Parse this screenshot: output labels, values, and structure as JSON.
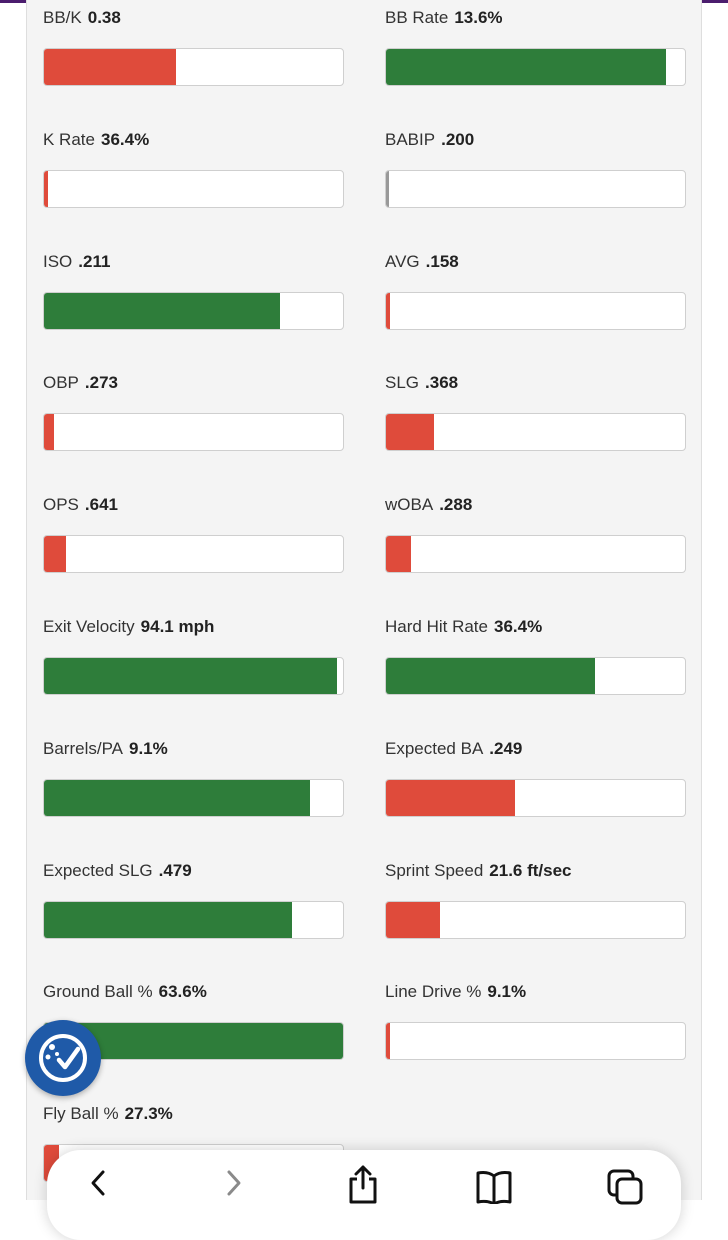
{
  "colors": {
    "good": "#2e7d3a",
    "bad": "#df4b3b",
    "neutral": "#999999"
  },
  "stats": [
    {
      "label": "BB/K",
      "value": "0.38",
      "pct": 0.44,
      "rating": "bad"
    },
    {
      "label": "BB Rate",
      "value": "13.6%",
      "pct": 0.935,
      "rating": "good"
    },
    {
      "label": "K Rate",
      "value": "36.4%",
      "pct": 0.013,
      "rating": "bad"
    },
    {
      "label": "BABIP",
      "value": ".200",
      "pct": 0.01,
      "rating": "neutral"
    },
    {
      "label": "ISO",
      "value": ".211",
      "pct": 0.79,
      "rating": "good"
    },
    {
      "label": "AVG",
      "value": ".158",
      "pct": 0.013,
      "rating": "bad"
    },
    {
      "label": "OBP",
      "value": ".273",
      "pct": 0.033,
      "rating": "bad"
    },
    {
      "label": "SLG",
      "value": ".368",
      "pct": 0.16,
      "rating": "bad"
    },
    {
      "label": "OPS",
      "value": ".641",
      "pct": 0.073,
      "rating": "bad"
    },
    {
      "label": "wOBA",
      "value": ".288",
      "pct": 0.083,
      "rating": "bad"
    },
    {
      "label": "Exit Velocity",
      "value": "94.1 mph",
      "pct": 0.98,
      "rating": "good"
    },
    {
      "label": "Hard Hit Rate",
      "value": "36.4%",
      "pct": 0.7,
      "rating": "good"
    },
    {
      "label": "Barrels/PA",
      "value": "9.1%",
      "pct": 0.89,
      "rating": "good"
    },
    {
      "label": "Expected BA",
      "value": ".249",
      "pct": 0.43,
      "rating": "bad"
    },
    {
      "label": "Expected SLG",
      "value": ".479",
      "pct": 0.83,
      "rating": "good"
    },
    {
      "label": "Sprint Speed",
      "value": "21.6 ft/sec",
      "pct": 0.18,
      "rating": "bad"
    },
    {
      "label": "Ground Ball %",
      "value": "63.6%",
      "pct": 1.0,
      "rating": "good"
    },
    {
      "label": "Line Drive %",
      "value": "9.1%",
      "pct": 0.013,
      "rating": "bad"
    },
    {
      "label": "Fly Ball %",
      "value": "27.3%",
      "pct": 0.05,
      "rating": "bad"
    }
  ],
  "toolbar": {
    "icons": [
      "back-icon",
      "forward-icon",
      "share-icon",
      "bookmarks-icon",
      "tabs-icon"
    ]
  }
}
